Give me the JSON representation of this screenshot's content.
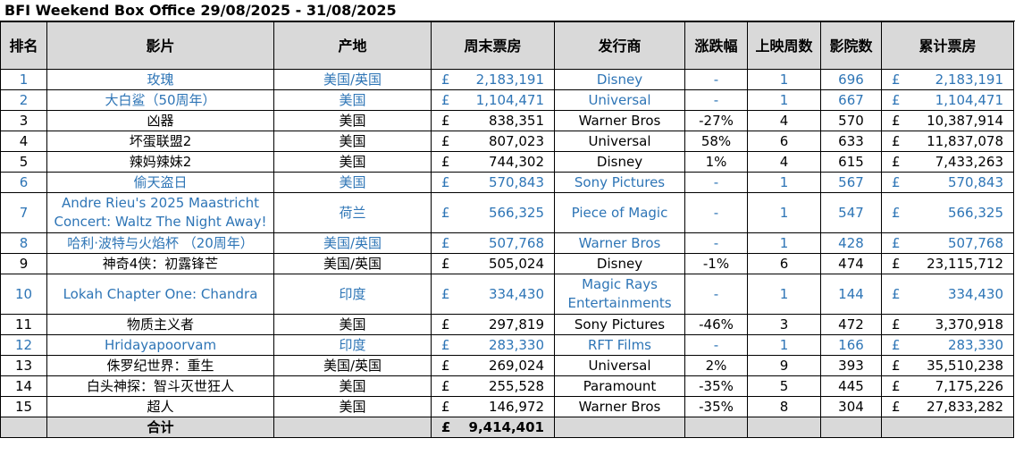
{
  "title": "BFI Weekend Box Office 29/08/2025 - 31/08/2025",
  "colors": {
    "header_bg": "#d9d9d9",
    "new_release_text": "#2e75b6",
    "normal_text": "#000000"
  },
  "headers": [
    "排名",
    "影片",
    "产地",
    "周末票房",
    "发行商",
    "涨跌幅",
    "上映周数",
    "影院数",
    "累计票房"
  ],
  "rows": [
    {
      "rank": "1",
      "film": "玫瑰",
      "origin": "美国/英国",
      "weekend_cur": "£",
      "weekend": "2,183,191",
      "distributor": "Disney",
      "change": "-",
      "weeks": "1",
      "cinemas": "696",
      "total_cur": "£",
      "total": "2,183,191",
      "is_new": true
    },
    {
      "rank": "2",
      "film": "大白鲨（50周年）",
      "origin": "美国",
      "weekend_cur": "£",
      "weekend": "1,104,471",
      "distributor": "Universal",
      "change": "-",
      "weeks": "1",
      "cinemas": "667",
      "total_cur": "£",
      "total": "1,104,471",
      "is_new": true
    },
    {
      "rank": "3",
      "film": "凶器",
      "origin": "美国",
      "weekend_cur": "£",
      "weekend": "838,351",
      "distributor": "Warner Bros",
      "change": "-27%",
      "weeks": "4",
      "cinemas": "570",
      "total_cur": "£",
      "total": "10,387,914",
      "is_new": false
    },
    {
      "rank": "4",
      "film": "坏蛋联盟2",
      "origin": "美国",
      "weekend_cur": "£",
      "weekend": "807,023",
      "distributor": "Universal",
      "change": "58%",
      "weeks": "6",
      "cinemas": "633",
      "total_cur": "£",
      "total": "11,837,078",
      "is_new": false
    },
    {
      "rank": "5",
      "film": "辣妈辣妹2",
      "origin": "美国",
      "weekend_cur": "£",
      "weekend": "744,302",
      "distributor": "Disney",
      "change": "1%",
      "weeks": "4",
      "cinemas": "615",
      "total_cur": "£",
      "total": "7,433,263",
      "is_new": false
    },
    {
      "rank": "6",
      "film": "偷天盗日",
      "origin": "美国",
      "weekend_cur": "£",
      "weekend": "570,843",
      "distributor": "Sony Pictures",
      "change": "-",
      "weeks": "1",
      "cinemas": "567",
      "total_cur": "£",
      "total": "570,843",
      "is_new": true
    },
    {
      "rank": "7",
      "film": "Andre Rieu's 2025 Maastricht Concert: Waltz The Night Away!",
      "origin": "荷兰",
      "weekend_cur": "£",
      "weekend": "566,325",
      "distributor": "Piece of Magic",
      "change": "-",
      "weeks": "1",
      "cinemas": "547",
      "total_cur": "£",
      "total": "566,325",
      "is_new": true,
      "tall": true
    },
    {
      "rank": "8",
      "film": "哈利·波特与火焰杯 （20周年）",
      "origin": "美国/英国",
      "weekend_cur": "£",
      "weekend": "507,768",
      "distributor": "Warner Bros",
      "change": "-",
      "weeks": "1",
      "cinemas": "428",
      "total_cur": "£",
      "total": "507,768",
      "is_new": true
    },
    {
      "rank": "9",
      "film": "神奇4侠：初露锋芒",
      "origin": "美国/英国",
      "weekend_cur": "£",
      "weekend": "505,024",
      "distributor": "Disney",
      "change": "-1%",
      "weeks": "6",
      "cinemas": "474",
      "total_cur": "£",
      "total": "23,115,712",
      "is_new": false
    },
    {
      "rank": "10",
      "film": "Lokah Chapter One: Chandra",
      "origin": "印度",
      "weekend_cur": "£",
      "weekend": "334,430",
      "distributor": "Magic Rays Entertainments",
      "change": "-",
      "weeks": "1",
      "cinemas": "144",
      "total_cur": "£",
      "total": "334,430",
      "is_new": true,
      "tall": true
    },
    {
      "rank": "11",
      "film": "物质主义者",
      "origin": "美国",
      "weekend_cur": "£",
      "weekend": "297,819",
      "distributor": "Sony Pictures",
      "change": "-46%",
      "weeks": "3",
      "cinemas": "472",
      "total_cur": "£",
      "total": "3,370,918",
      "is_new": false
    },
    {
      "rank": "12",
      "film": "Hridayapoorvam",
      "origin": "印度",
      "weekend_cur": "£",
      "weekend": "283,330",
      "distributor": "RFT Films",
      "change": "-",
      "weeks": "1",
      "cinemas": "166",
      "total_cur": "£",
      "total": "283,330",
      "is_new": true
    },
    {
      "rank": "13",
      "film": "侏罗纪世界：重生",
      "origin": "美国/英国",
      "weekend_cur": "£",
      "weekend": "269,024",
      "distributor": "Universal",
      "change": "2%",
      "weeks": "9",
      "cinemas": "393",
      "total_cur": "£",
      "total": "35,510,238",
      "is_new": false
    },
    {
      "rank": "14",
      "film": "白头神探：智斗灭世狂人",
      "origin": "美国",
      "weekend_cur": "£",
      "weekend": "255,528",
      "distributor": "Paramount",
      "change": "-35%",
      "weeks": "5",
      "cinemas": "445",
      "total_cur": "£",
      "total": "7,175,226",
      "is_new": false
    },
    {
      "rank": "15",
      "film": "超人",
      "origin": "美国",
      "weekend_cur": "£",
      "weekend": "146,972",
      "distributor": "Warner Bros",
      "change": "-35%",
      "weeks": "8",
      "cinemas": "304",
      "total_cur": "£",
      "total": "27,833,282",
      "is_new": false
    }
  ],
  "total_row": {
    "label": "合计",
    "weekend_cur": "£",
    "weekend": "9,414,401"
  }
}
